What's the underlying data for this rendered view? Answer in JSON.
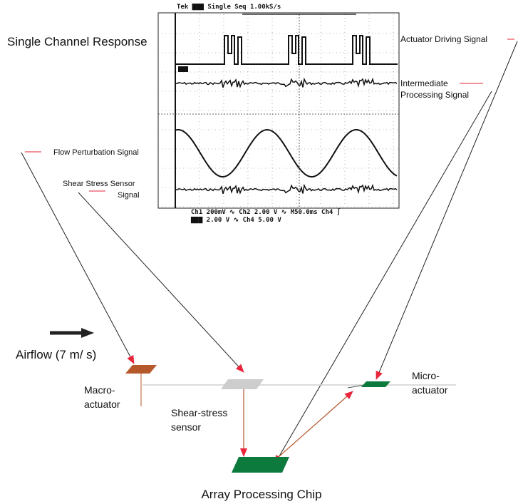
{
  "title": "Single Channel Response",
  "scope": {
    "header": "Tek ▇▇▇ Single Seq  1.00kS/s",
    "readouts": [
      "Ch1   200mV ∿ Ch2    2.00 V ∿ M50.0ms  Ch4 ∫",
      "▇▇▇    2.00 V ∿ Ch4    5.00 V"
    ]
  },
  "signals": [
    {
      "label": [
        "Actuator Driving Signal"
      ]
    },
    {
      "label": [
        "Intermediate",
        "Processing Signal"
      ]
    },
    {
      "label": [
        "Flow Perturbation Signal"
      ]
    },
    {
      "label": [
        "Shear Stress Sensor",
        "Signal"
      ]
    }
  ],
  "components": [
    {
      "label": [
        "Airflow  (7 m/ s)"
      ]
    },
    {
      "label": [
        "Macro-",
        "actuator"
      ]
    },
    {
      "label": [
        "Shear-stress",
        "sensor"
      ]
    },
    {
      "label": [
        "Micro-",
        "actuator"
      ]
    },
    {
      "label": [
        "Array Processing Chip"
      ]
    }
  ]
}
